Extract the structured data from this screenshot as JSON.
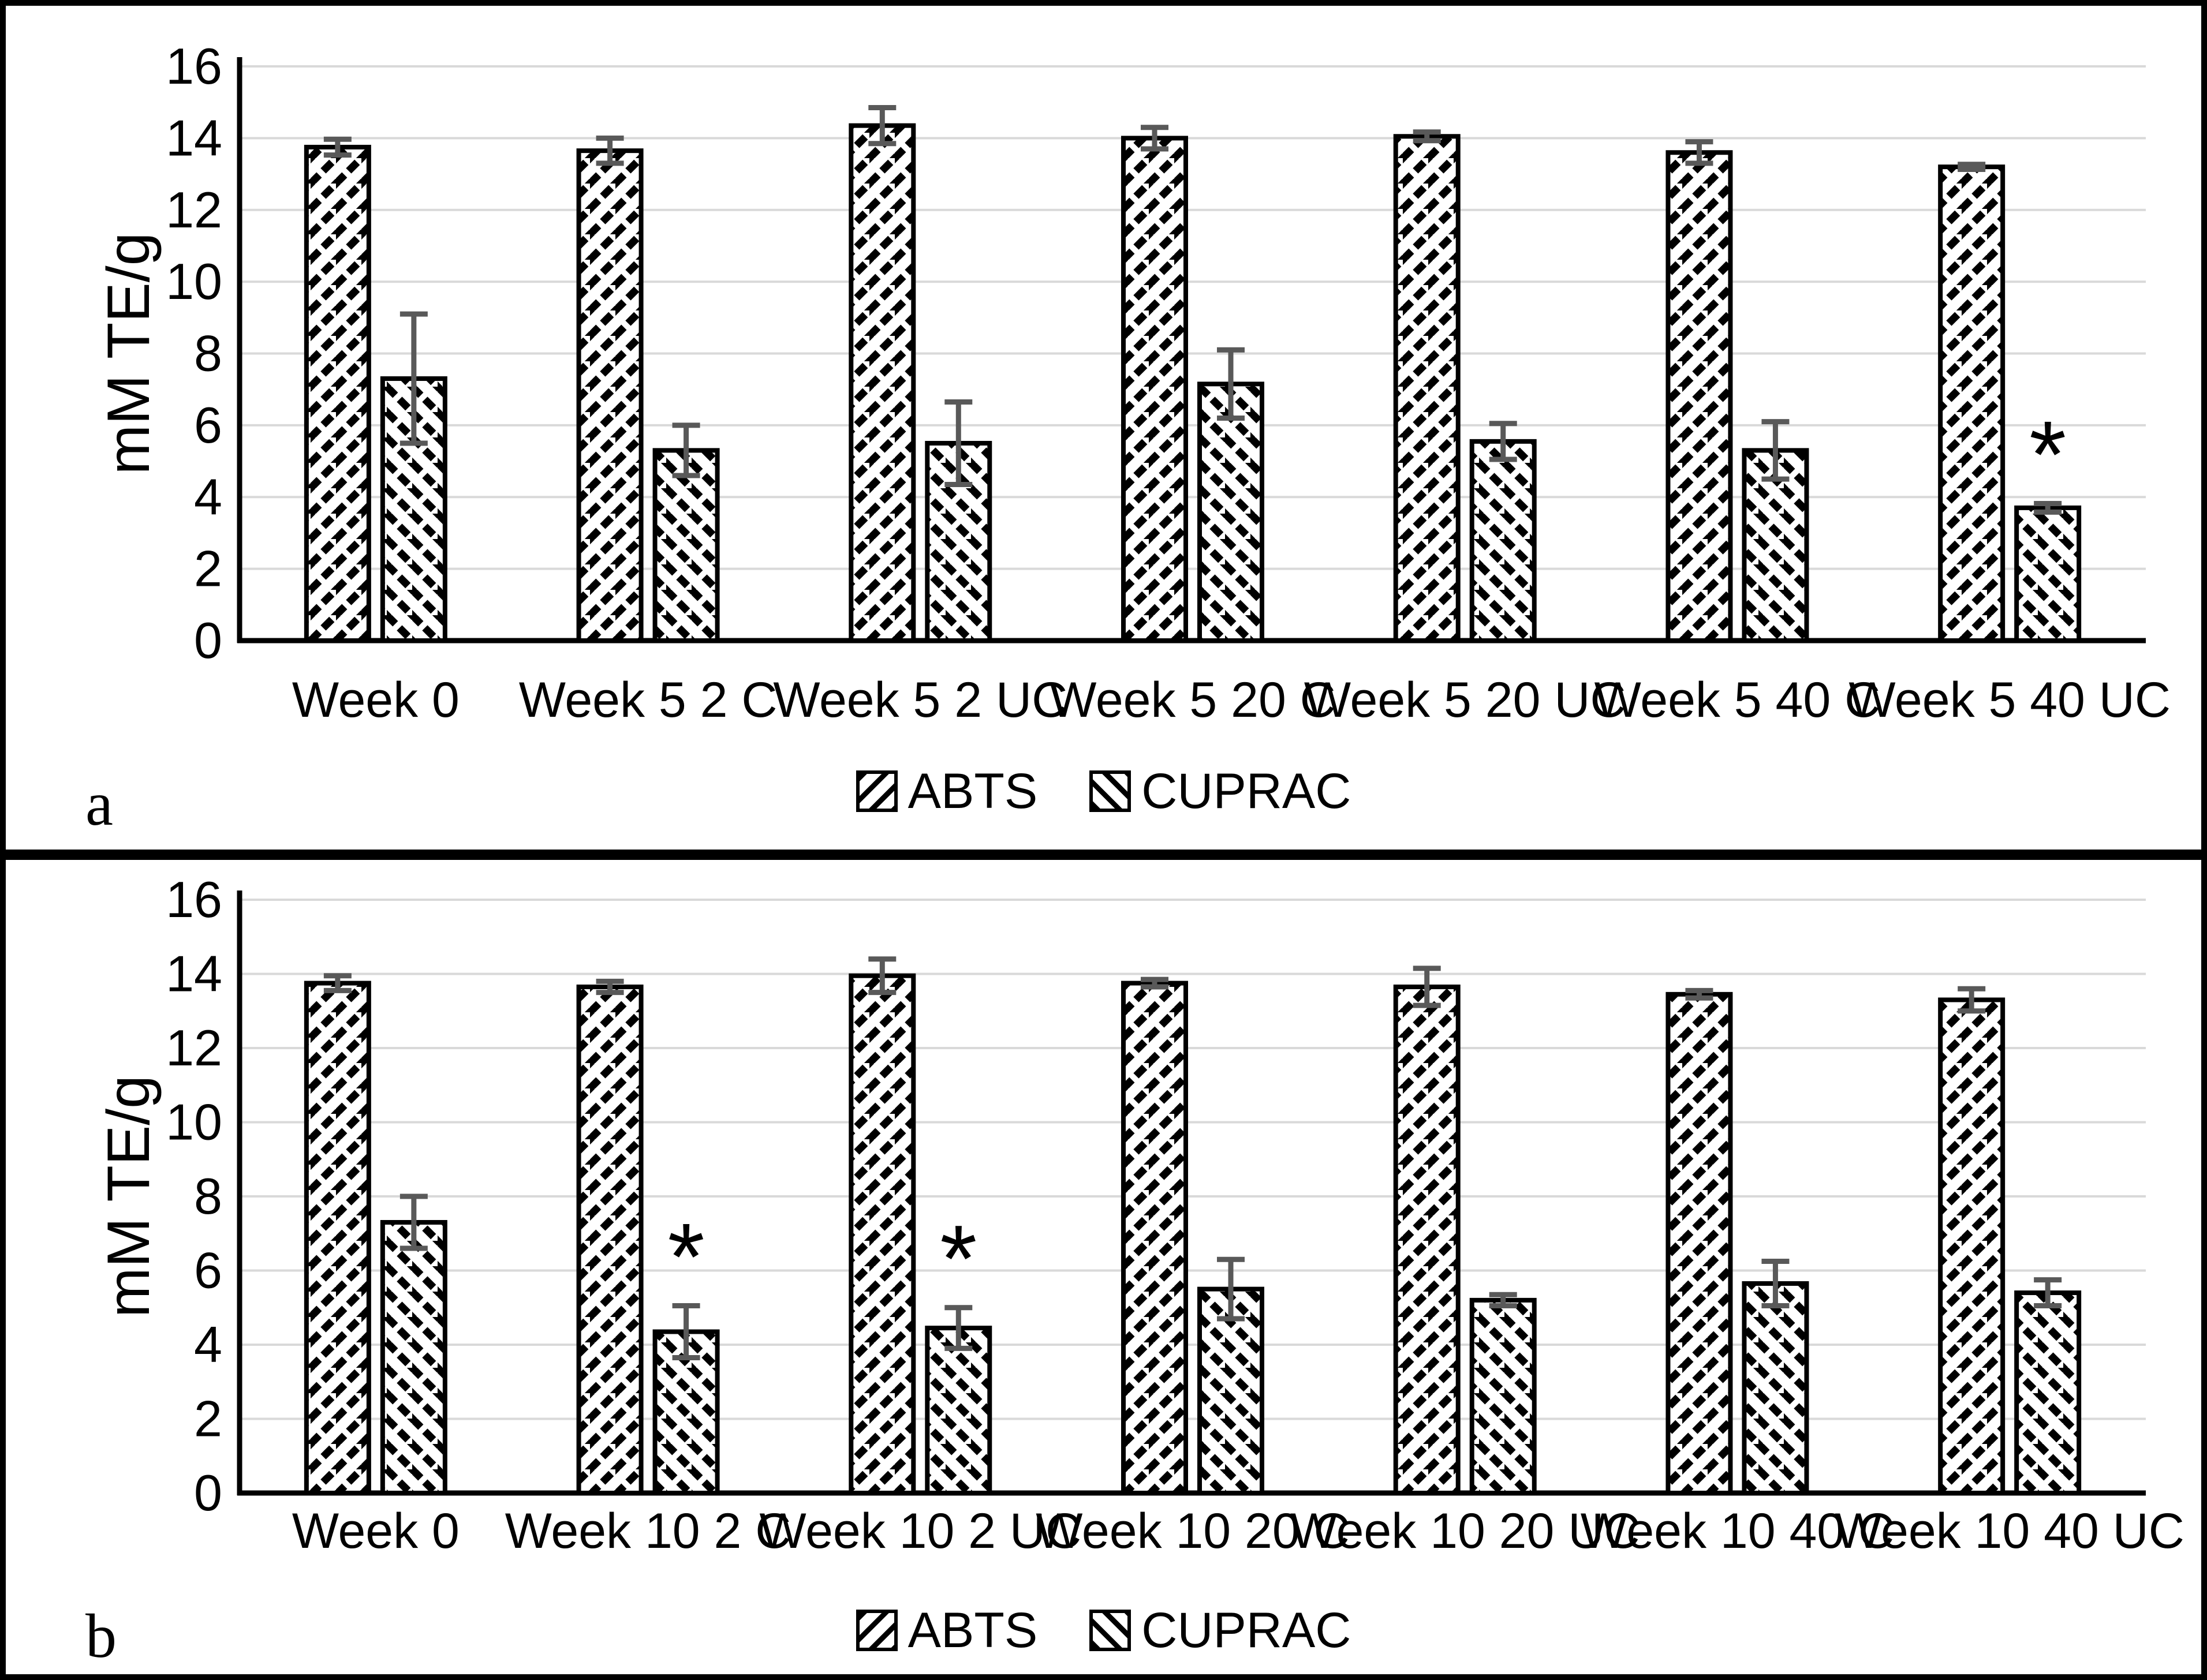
{
  "figure": {
    "panels": [
      {
        "letter": "a"
      },
      {
        "letter": "b"
      }
    ],
    "sig_marker": "*",
    "colors": {
      "hatch": "#000000",
      "bar_outline": "#000000",
      "error_bar": "#595959",
      "gridline": "#d9d9d9",
      "axis": "#000000",
      "background": "#ffffff",
      "border": "#000000"
    }
  },
  "chart_data": [
    {
      "type": "bar",
      "panel": "a",
      "title": "",
      "xlabel": "",
      "ylabel": "mM TE/g",
      "ylim": [
        0,
        16
      ],
      "yticks": [
        0,
        2,
        4,
        6,
        8,
        10,
        12,
        14,
        16
      ],
      "grid": true,
      "legend_position": "bottom-center",
      "categories": [
        "Week 0",
        "Week 5 2 C",
        "Week 5 2 UC",
        "Week 5 20 C",
        "Week 5 20 UC",
        "Week 5 40 C",
        "Week 5 40 UC"
      ],
      "series": [
        {
          "name": "ABTS",
          "hatch": "forward-diagonal",
          "values": [
            13.75,
            13.65,
            14.35,
            14.0,
            14.05,
            13.6,
            13.2
          ],
          "errors": [
            0.22,
            0.35,
            0.5,
            0.3,
            0.12,
            0.3,
            0.07
          ],
          "sig": [
            false,
            false,
            false,
            false,
            false,
            false,
            false
          ]
        },
        {
          "name": "CUPRAC",
          "hatch": "backward-diagonal",
          "values": [
            7.3,
            5.3,
            5.5,
            7.15,
            5.55,
            5.3,
            3.7
          ],
          "errors": [
            1.8,
            0.7,
            1.15,
            0.95,
            0.5,
            0.8,
            0.12
          ],
          "sig": [
            false,
            false,
            false,
            false,
            false,
            false,
            true
          ]
        }
      ]
    },
    {
      "type": "bar",
      "panel": "b",
      "title": "",
      "xlabel": "",
      "ylabel": "mM TE/g",
      "ylim": [
        0,
        16
      ],
      "yticks": [
        0,
        2,
        4,
        6,
        8,
        10,
        12,
        14,
        16
      ],
      "grid": true,
      "legend_position": "bottom-center",
      "categories": [
        "Week 0",
        "Week 10 2 C",
        "Week 10 2 UC",
        "Week 10 20 C",
        "Week 10 20 UC",
        "Week 10 40 C",
        "Week 10 40 UC"
      ],
      "series": [
        {
          "name": "ABTS",
          "hatch": "forward-diagonal",
          "values": [
            13.75,
            13.65,
            13.95,
            13.75,
            13.65,
            13.45,
            13.3
          ],
          "errors": [
            0.2,
            0.15,
            0.45,
            0.1,
            0.5,
            0.1,
            0.3
          ],
          "sig": [
            false,
            false,
            false,
            false,
            false,
            false,
            false
          ]
        },
        {
          "name": "CUPRAC",
          "hatch": "backward-diagonal",
          "values": [
            7.3,
            4.35,
            4.45,
            5.5,
            5.2,
            5.65,
            5.4
          ],
          "errors": [
            0.7,
            0.7,
            0.55,
            0.8,
            0.15,
            0.6,
            0.35
          ],
          "sig": [
            false,
            true,
            true,
            false,
            false,
            false,
            false
          ]
        }
      ]
    }
  ]
}
